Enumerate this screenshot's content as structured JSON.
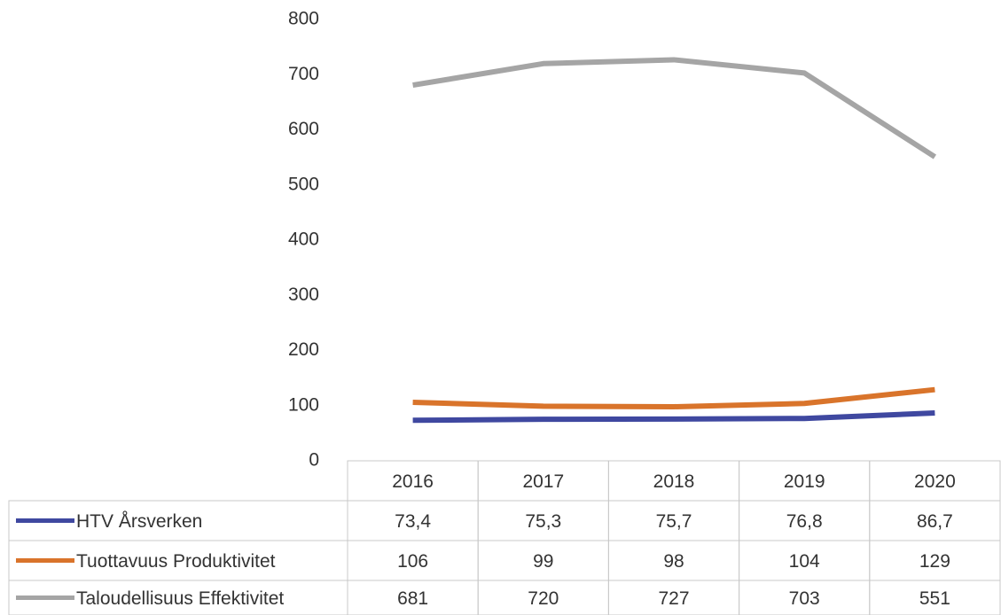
{
  "chart_data": {
    "type": "line",
    "categories": [
      "2016",
      "2017",
      "2018",
      "2019",
      "2020"
    ],
    "series": [
      {
        "name": "HTV Årsverken",
        "color": "#3f48a0",
        "values": [
          73.4,
          75.3,
          75.7,
          76.8,
          86.7
        ],
        "value_labels": [
          "73,4",
          "75,3",
          "75,7",
          "76,8",
          "86,7"
        ]
      },
      {
        "name": "Tuottavuus Produktivitet",
        "color": "#d9742b",
        "values": [
          106,
          99,
          98,
          104,
          129
        ]
      },
      {
        "name": "Taloudellisuus Effektivitet",
        "color": "#a5a5a5",
        "values": [
          681,
          720,
          727,
          703,
          551
        ]
      }
    ],
    "ylim": [
      0,
      800
    ],
    "yticks": [
      0,
      100,
      200,
      300,
      400,
      500,
      600,
      700,
      800
    ],
    "grid": false
  }
}
